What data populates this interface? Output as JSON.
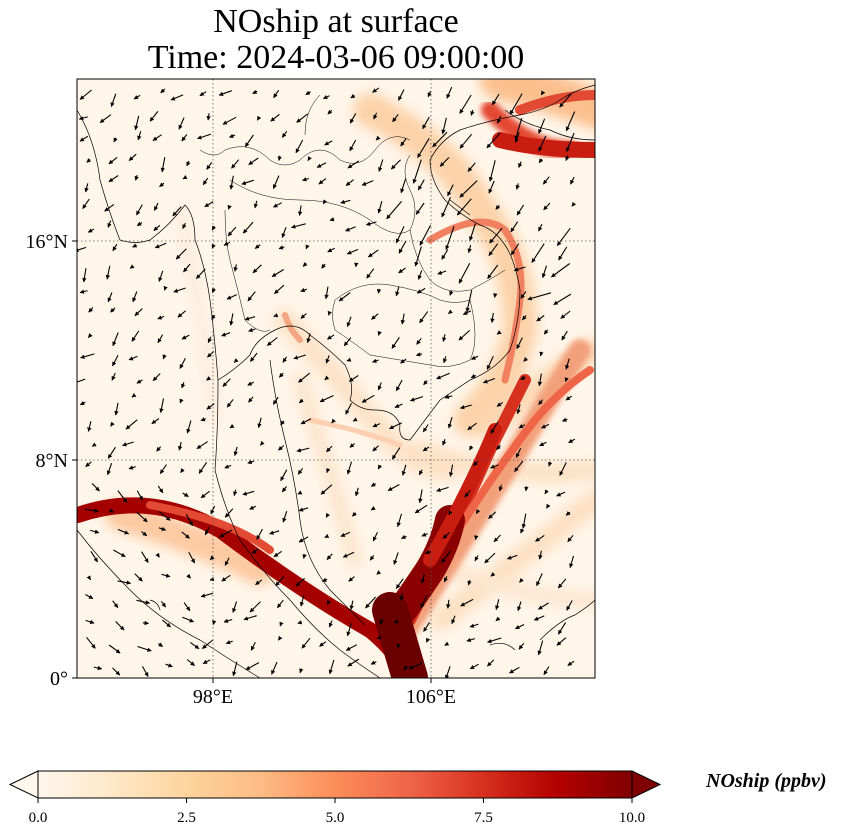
{
  "title_line1": "NOship at surface",
  "title_line2": "Time: 2024-03-06 09:00:00",
  "map": {
    "lon_range": [
      91,
      110
    ],
    "lat_range": [
      0,
      22
    ],
    "lat_ticks": [
      "16°N",
      "8°N",
      "0°"
    ],
    "lon_ticks": [
      "98°E",
      "106°E"
    ],
    "gridlines": "dotted"
  },
  "colorbar": {
    "label": "NOship (ppbv)",
    "ticks": [
      "0.0",
      "2.5",
      "5.0",
      "7.5",
      "10.0"
    ],
    "min": 0,
    "max": 10,
    "colormap": "OrRd",
    "extend": "both",
    "colors": [
      "#fff7ec",
      "#fee8c8",
      "#fdd49e",
      "#fdbb84",
      "#fc8d59",
      "#ef6548",
      "#d7301f",
      "#b30000",
      "#7f0000"
    ]
  }
}
